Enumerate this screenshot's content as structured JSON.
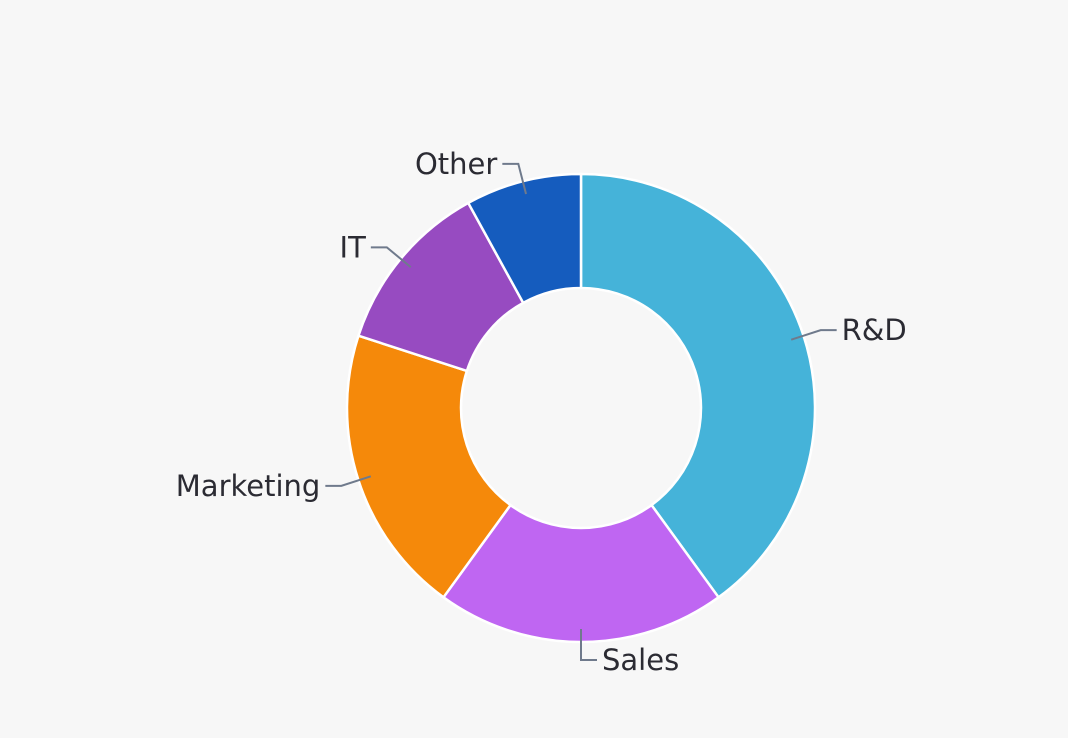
{
  "chart_data": {
    "type": "pie",
    "variant": "donut",
    "title": "",
    "categories": [
      "R&D",
      "Sales",
      "Marketing",
      "IT",
      "Other"
    ],
    "values": [
      40,
      20,
      20,
      12,
      8
    ],
    "colors": [
      "#45B3D9",
      "#BF66F2",
      "#F5890A",
      "#974BC1",
      "#155CBE"
    ],
    "start_angle": "top, clockwise",
    "legend": "none; labels outside with leader lines"
  }
}
